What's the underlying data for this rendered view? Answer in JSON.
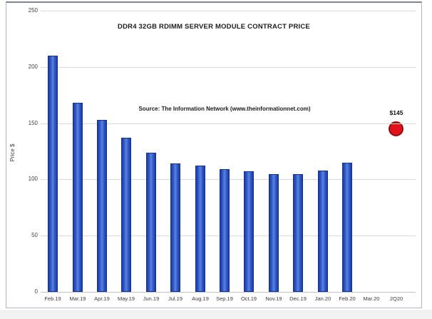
{
  "frame": {
    "border_color": "#aeb8c9",
    "background": "#ffffff"
  },
  "chart_data": {
    "type": "bar",
    "title": "DDR4 32GB RDIMM SERVER MODULE CONTRACT PRICE",
    "source_note": "Source: The Information Network (www.theinformationnet.com)",
    "xlabel": "",
    "ylabel": "Price $",
    "ylim": [
      0,
      250
    ],
    "yticks": [
      0,
      50,
      100,
      150,
      200,
      250
    ],
    "grid": "horizontal",
    "legend": "none",
    "categories": [
      "Feb.19",
      "Mar.19",
      "Apr.19",
      "May.19",
      "Jun.19",
      "Jul.19",
      "Aug.19",
      "Sep.19",
      "Oct.19",
      "Nov.19",
      "Dec.19",
      "Jan.20",
      "Feb.20",
      "Mar.20",
      "2Q20"
    ],
    "values": [
      210,
      168,
      153,
      137,
      124,
      114,
      112,
      109,
      107,
      105,
      105,
      108,
      115,
      null,
      null
    ],
    "bar_color": "#2e57c4",
    "bar_border_color": "#16328c",
    "gridline_color": "#d9d9d9",
    "marker": {
      "category": "2Q20",
      "value": 145,
      "label": "$145",
      "shape": "circle",
      "color": "#e31119",
      "border_color": "#8c1113"
    }
  }
}
